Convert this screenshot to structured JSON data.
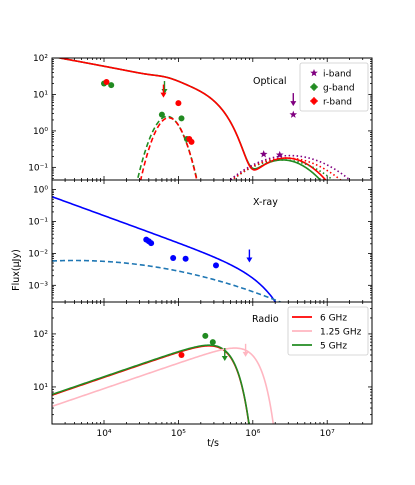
{
  "chart_data": {
    "type": "scatter",
    "ylabel": "Flux(μJy)",
    "xlabel": "t/s",
    "xscale": "log",
    "yscale": "log",
    "xlim": [
      2000,
      40000000
    ],
    "x_tick_labels": [
      "10^4",
      "10^5",
      "10^6",
      "10^7"
    ],
    "panels": [
      {
        "title": "Optical",
        "ylim": [
          0.045,
          100
        ],
        "y_tick_labels": [
          "10^2",
          "10^1",
          "10^0",
          "10^-1"
        ],
        "legend": {
          "placement": "top-right",
          "entries": [
            {
              "label": "i-band",
              "color": "#800080",
              "marker": "star"
            },
            {
              "label": "g-band",
              "color": "#228B22",
              "marker": "plus"
            },
            {
              "label": "r-band",
              "color": "#ff0000",
              "marker": "plus"
            }
          ]
        },
        "series": [
          {
            "band": "g-band",
            "color": "#228B22",
            "points": [
              [
                10000,
                20
              ],
              [
                12500,
                18
              ],
              [
                60000,
                2.8
              ],
              [
                110000,
                2.2
              ],
              [
                130000,
                0.6
              ]
            ],
            "upper_limits": [
              [
                65000,
                15
              ]
            ]
          },
          {
            "band": "r-band",
            "color": "#ff0000",
            "points": [
              [
                10800,
                22
              ],
              [
                100000,
                5.8
              ],
              [
                140000,
                0.6
              ],
              [
                150000,
                0.5
              ]
            ],
            "upper_limits": [
              [
                63000,
                12
              ]
            ]
          },
          {
            "band": "i-band",
            "color": "#800080",
            "points": [
              [
                1400000,
                0.23
              ],
              [
                2300000,
                0.22
              ],
              [
                3500000,
                2.8
              ]
            ],
            "upper_limits": [
              [
                3500000,
                7
              ]
            ]
          }
        ],
        "model_lines": [
          {
            "color": "#228B22",
            "style": "solid"
          },
          {
            "color": "#ff0000",
            "style": "solid"
          },
          {
            "color": "#228B22",
            "style": "dashed"
          },
          {
            "color": "#ff0000",
            "style": "dashed"
          },
          {
            "color": "#228B22",
            "style": "dotted"
          },
          {
            "color": "#ff0000",
            "style": "dotted"
          },
          {
            "color": "#800080",
            "style": "dotted"
          }
        ]
      },
      {
        "title": "X-ray",
        "ylim": [
          0.0003,
          2
        ],
        "y_tick_labels": [
          "10^0",
          "10^-1",
          "10^-2",
          "10^-3"
        ],
        "series": [
          {
            "color": "#0000ff",
            "points": [
              [
                37000,
                0.027
              ],
              [
                40000,
                0.024
              ],
              [
                43000,
                0.021
              ],
              [
                85000,
                0.0072
              ],
              [
                125000,
                0.0068
              ],
              [
                320000,
                0.0042
              ]
            ],
            "upper_limits": [
              [
                900000,
                0.008
              ]
            ]
          }
        ],
        "model_lines": [
          {
            "color": "#0000ff",
            "style": "solid"
          },
          {
            "color": "#1f77b4",
            "style": "dashed"
          }
        ]
      },
      {
        "title": "Radio",
        "ylim": [
          2,
          400
        ],
        "y_tick_labels": [
          "10^2",
          "10^1"
        ],
        "legend": {
          "placement": "top-right",
          "entries": [
            {
              "label": "6 GHz",
              "color": "#ff0000"
            },
            {
              "label": "1.25 GHz",
              "color": "#ffb6c1"
            },
            {
              "label": "5 GHz",
              "color": "#228B22"
            }
          ]
        },
        "series": [
          {
            "band": "6 GHz",
            "color": "#ff0000",
            "points": [
              [
                110000,
                40
              ]
            ]
          },
          {
            "band": "5 GHz",
            "color": "#228B22",
            "points": [
              [
                230000,
                92
              ],
              [
                290000,
                70
              ]
            ],
            "upper_limits": [
              [
                420000,
                40
              ]
            ]
          },
          {
            "band": "1.25 GHz",
            "color": "#ffb6c1",
            "points": [],
            "upper_limits": [
              [
                800000,
                48
              ]
            ]
          }
        ],
        "model_lines": [
          {
            "color": "#ff0000",
            "style": "solid"
          },
          {
            "color": "#228B22",
            "style": "solid"
          },
          {
            "color": "#ffb6c1",
            "style": "solid"
          }
        ]
      }
    ]
  }
}
